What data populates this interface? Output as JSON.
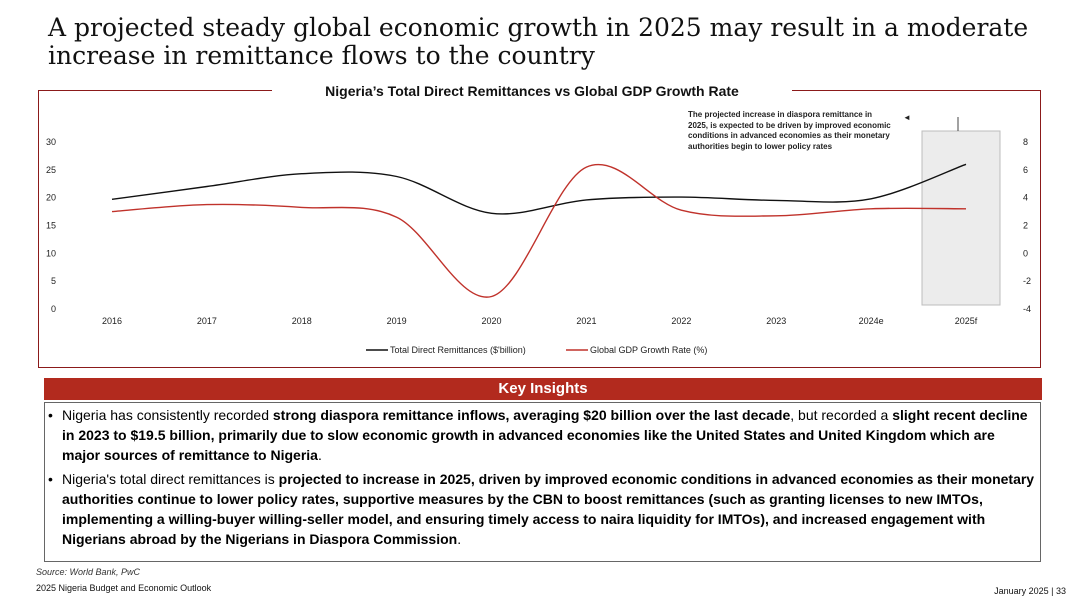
{
  "headline": "A projected steady global economic growth in 2025 may result in a moderate increase in remittance flows to the country",
  "chart_data": {
    "type": "line",
    "title": "Nigeria’s Total Direct Remittances vs  Global GDP Growth Rate",
    "categories": [
      "2016",
      "2017",
      "2018",
      "2019",
      "2020",
      "2021",
      "2022",
      "2023",
      "2024e",
      "2025f"
    ],
    "y_left": {
      "ticks": [
        "0",
        "5",
        "10",
        "15",
        "20",
        "25",
        "30"
      ],
      "min": 0,
      "max": 30
    },
    "y_right": {
      "ticks": [
        "-4",
        "-2",
        "0",
        "2",
        "4",
        "6",
        "8"
      ],
      "min": -4,
      "max": 8
    },
    "series": [
      {
        "name": "Total Direct Remittances ($'billion)",
        "axis": "left",
        "color": "#111111",
        "values": [
          19.7,
          22.0,
          24.3,
          23.8,
          17.2,
          19.6,
          20.1,
          19.5,
          19.8,
          26.0
        ]
      },
      {
        "name": "Global GDP Growth Rate (%)",
        "axis": "right",
        "color": "#c0322b",
        "values": [
          3.0,
          3.5,
          3.3,
          2.6,
          -3.1,
          6.2,
          3.1,
          2.7,
          3.2,
          3.2
        ]
      }
    ],
    "legend_position": "bottom-center",
    "grid": false,
    "annotation": "The projected increase in diaspora remittance in 2025, is expected to be driven by improved economic conditions in advanced economies as their monetary authorities begin to lower policy rates"
  },
  "insights": {
    "title": "Key Insights",
    "bullet_symbol": "•",
    "items": [
      [
        {
          "t": "Nigeria has consistently recorded ",
          "b": false
        },
        {
          "t": "strong diaspora remittance inflows, averaging $20 billion over the last decade",
          "b": true
        },
        {
          "t": ", but recorded a ",
          "b": false
        },
        {
          "t": "slight recent decline in 2023 to $19.5 billion, primarily due to slow economic growth in advanced economies like the United States and United Kingdom which are major sources of remittance to Nigeria",
          "b": true
        },
        {
          "t": ".",
          "b": false
        }
      ],
      [
        {
          "t": "Nigeria's total direct remittances is ",
          "b": false
        },
        {
          "t": "projected to increase in 2025, driven by improved economic conditions in advanced economies as their monetary authorities continue to lower policy rates, supportive measures by the CBN to boost remittances (such as granting licenses to new IMTOs, implementing a willing-buyer willing-seller model, and ensuring timely access to naira liquidity for IMTOs), and increased engagement with Nigerians abroad by the Nigerians in Diaspora Commission",
          "b": true
        },
        {
          "t": ".",
          "b": false
        }
      ]
    ]
  },
  "source": "Source: World Bank, PwC",
  "footer": {
    "left": "2025 Nigeria Budget and Economic Outlook",
    "right": "January 2025 | 33"
  }
}
